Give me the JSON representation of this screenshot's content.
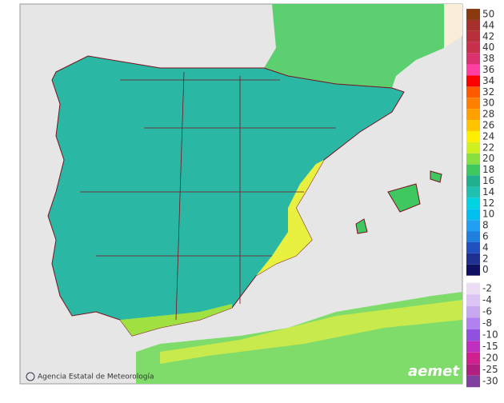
{
  "map": {
    "footer": "Agencia Estatal de Meteorología",
    "logo": "aemet",
    "legend": {
      "upper": [
        {
          "value": 50,
          "color": "#8b3a10"
        },
        {
          "value": 44,
          "color": "#a5302c"
        },
        {
          "value": 42,
          "color": "#b8303c"
        },
        {
          "value": 40,
          "color": "#c8304c"
        },
        {
          "value": 38,
          "color": "#dc3070"
        },
        {
          "value": 36,
          "color": "#ff40a0"
        },
        {
          "value": 34,
          "color": "#ff0000"
        },
        {
          "value": 32,
          "color": "#ff5a00"
        },
        {
          "value": 30,
          "color": "#ff8000"
        },
        {
          "value": 28,
          "color": "#ffa000"
        },
        {
          "value": 26,
          "color": "#ffc400"
        },
        {
          "value": 24,
          "color": "#ffee00"
        },
        {
          "value": 22,
          "color": "#d0f020"
        },
        {
          "value": 20,
          "color": "#88e040"
        },
        {
          "value": 18,
          "color": "#40c860"
        },
        {
          "value": 16,
          "color": "#20b090"
        },
        {
          "value": 14,
          "color": "#20c0b0"
        },
        {
          "value": 12,
          "color": "#00d4e0"
        },
        {
          "value": 10,
          "color": "#00c0f0"
        },
        {
          "value": 8,
          "color": "#20a0f0"
        },
        {
          "value": 6,
          "color": "#2080e0"
        },
        {
          "value": 4,
          "color": "#2050c0"
        },
        {
          "value": 2,
          "color": "#203090"
        },
        {
          "value": 0,
          "color": "#101060"
        }
      ],
      "lower": [
        {
          "value": -2,
          "color": "#ecdcf4"
        },
        {
          "value": -4,
          "color": "#dcc4f4"
        },
        {
          "value": -6,
          "color": "#c8a8f0"
        },
        {
          "value": -8,
          "color": "#b080f0"
        },
        {
          "value": -10,
          "color": "#9050e0"
        },
        {
          "value": -15,
          "color": "#c030c0"
        },
        {
          "value": -20,
          "color": "#d02090"
        },
        {
          "value": -25,
          "color": "#b02080"
        },
        {
          "value": -30,
          "color": "#8040a0"
        }
      ]
    }
  }
}
